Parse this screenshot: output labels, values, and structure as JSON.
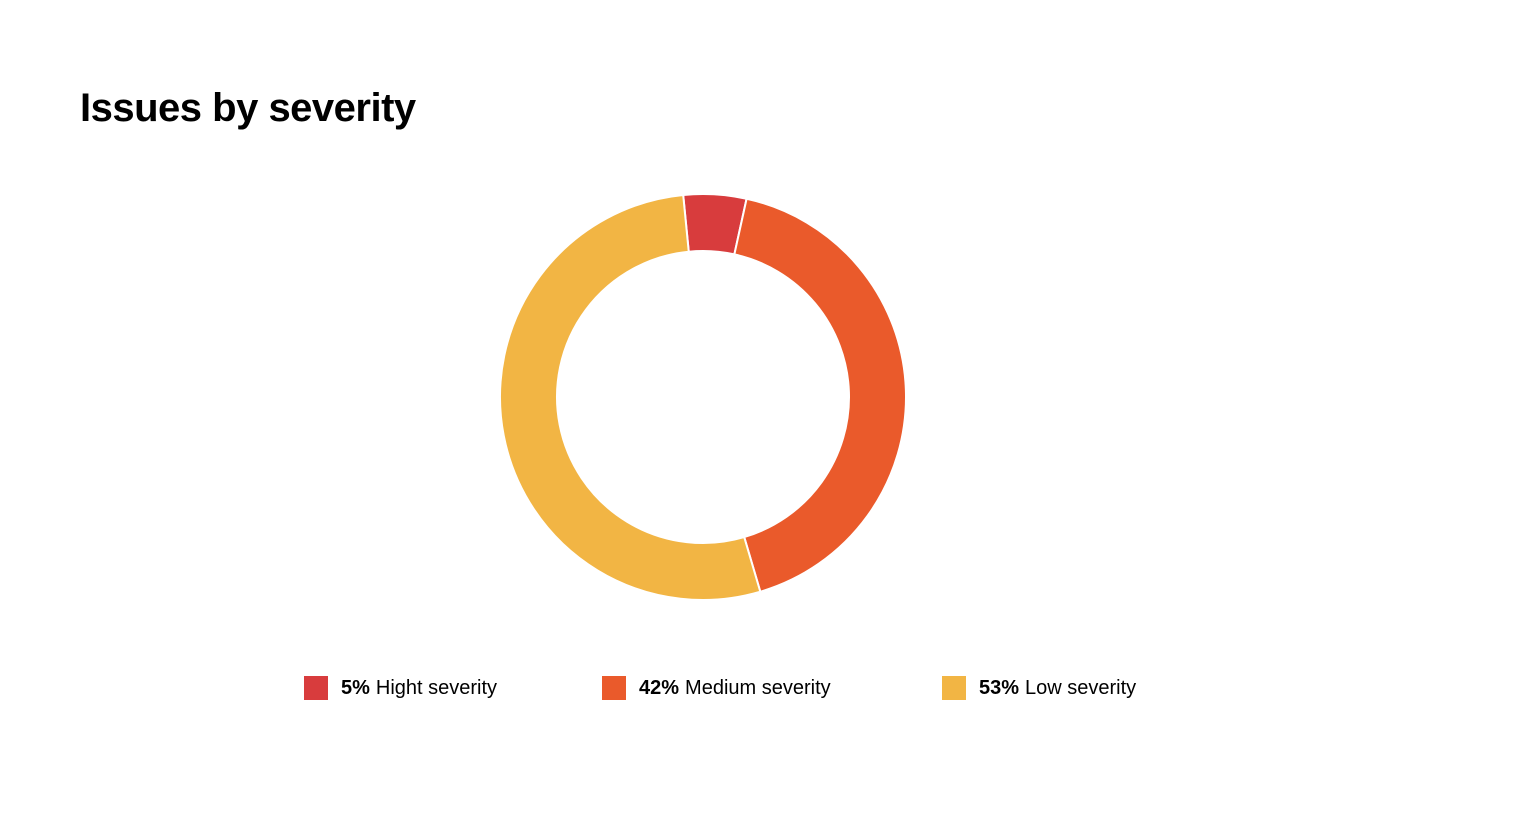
{
  "chart_data": {
    "type": "pie",
    "variant": "donut",
    "title": "Issues by severity",
    "categories": [
      "Hight severity",
      "Medium severity",
      "Low severity"
    ],
    "values": [
      5,
      42,
      53
    ],
    "value_labels": [
      "5%",
      "42%",
      "53%"
    ],
    "colors": [
      "#D83C3D",
      "#EA5A2B",
      "#F2B544"
    ],
    "start_angle_deg": -5.6,
    "legend_position": "bottom"
  }
}
